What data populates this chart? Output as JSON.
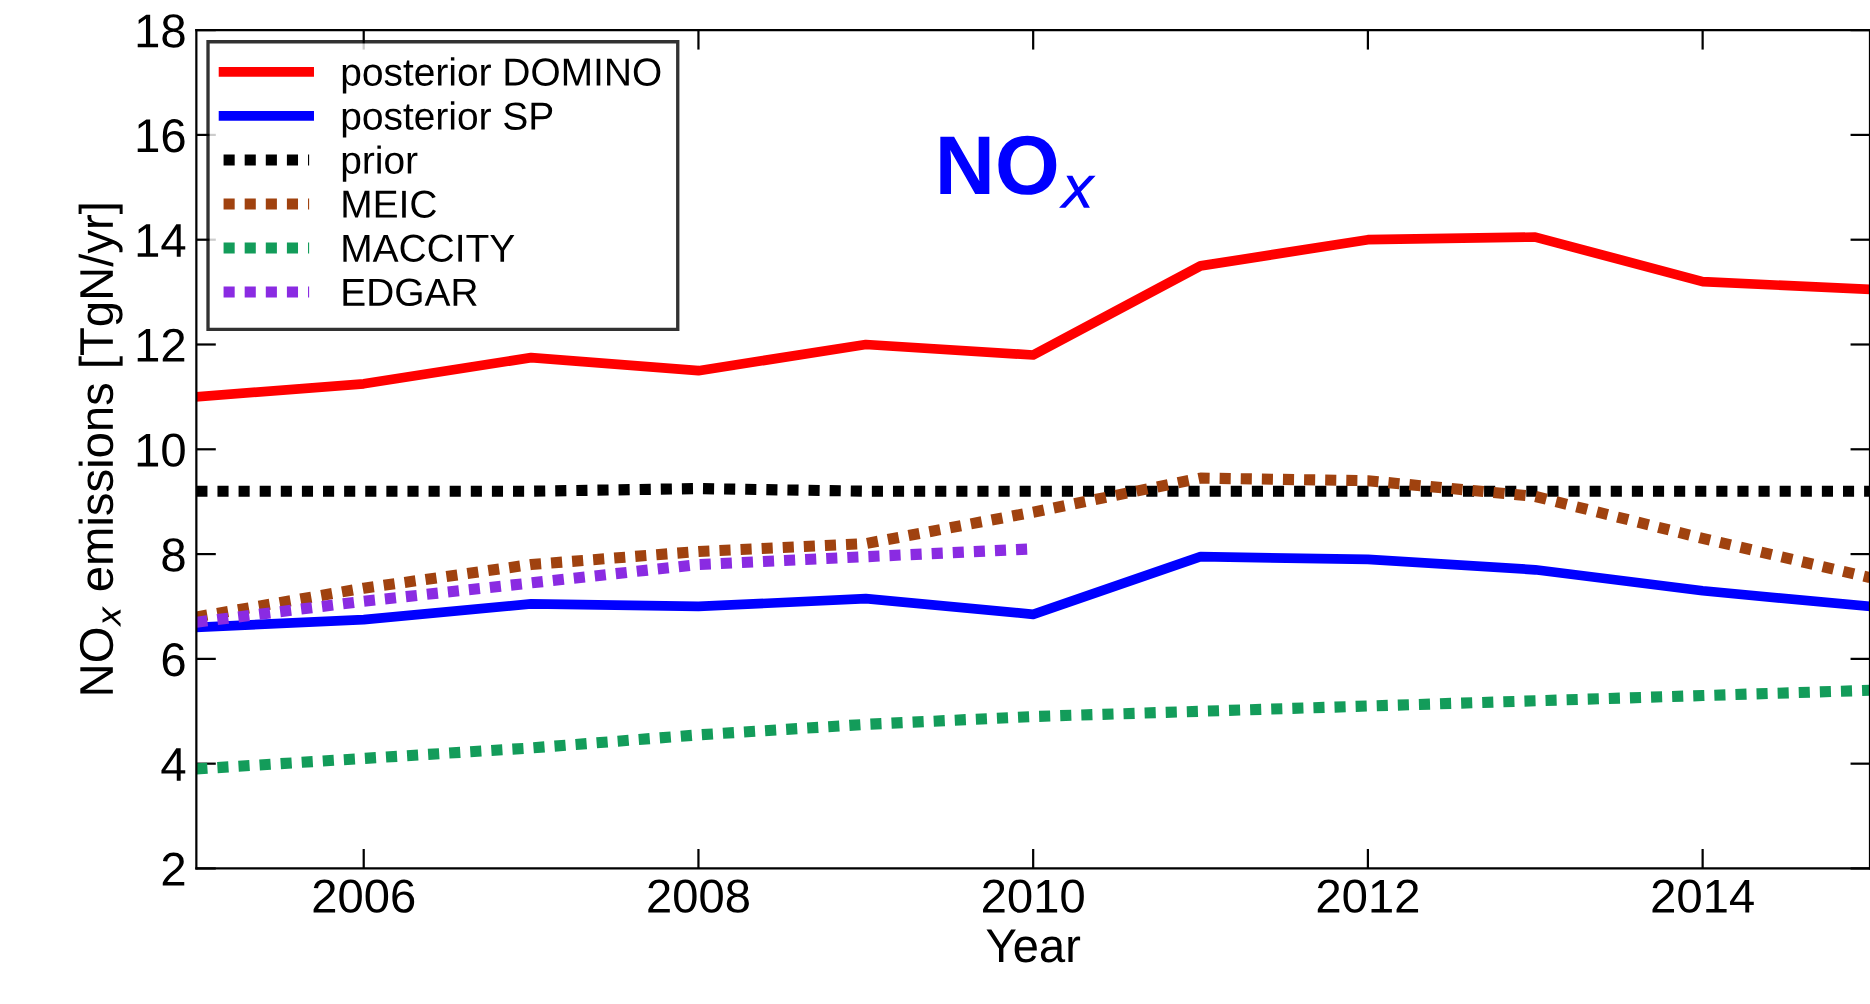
{
  "chart_data": {
    "type": "line",
    "xlabel": "Year",
    "ylabel": "NO$_{x}$ emissions [TgN/yr]",
    "annotations": [
      "NO$_{x}$"
    ],
    "x": [
      2005,
      2006,
      2007,
      2008,
      2009,
      2010,
      2011,
      2012,
      2013,
      2014,
      2015
    ],
    "series": [
      {
        "name": "posterior DOMINO",
        "color": "#ff0000",
        "line_style": "solid",
        "values": [
          11.0,
          11.25,
          11.75,
          11.5,
          12.0,
          11.8,
          13.5,
          14.0,
          14.05,
          13.2,
          13.05
        ]
      },
      {
        "name": "posterior SP",
        "color": "#0000ff",
        "line_style": "solid",
        "values": [
          6.6,
          6.75,
          7.05,
          7.0,
          7.15,
          6.85,
          7.95,
          7.9,
          7.7,
          7.3,
          7.0
        ]
      },
      {
        "name": "prior",
        "color": "#000000",
        "line_style": "dotted",
        "values": [
          9.2,
          9.2,
          9.2,
          9.25,
          9.2,
          9.2,
          9.2,
          9.2,
          9.2,
          9.2,
          9.2
        ]
      },
      {
        "name": "MEIC",
        "color": "#a0420f",
        "line_style": "dotted",
        "values": [
          6.8,
          7.35,
          7.8,
          8.05,
          8.2,
          8.8,
          9.45,
          9.4,
          9.1,
          8.3,
          7.55
        ]
      },
      {
        "name": "MACCITY",
        "color": "#139c5a",
        "line_style": "dotted",
        "values": [
          3.9,
          4.1,
          4.3,
          4.55,
          4.75,
          4.9,
          5.0,
          5.1,
          5.2,
          5.3,
          5.4
        ]
      },
      {
        "name": "EDGAR",
        "color": "#8a2be2",
        "line_style": "dotted",
        "values": [
          6.7,
          7.1,
          7.45,
          7.8,
          7.95,
          8.1,
          null,
          null,
          null,
          null,
          null
        ]
      }
    ],
    "xlim": [
      2005,
      2015
    ],
    "xticks": [
      2006,
      2008,
      2010,
      2012,
      2014
    ],
    "ylim": [
      2,
      18
    ],
    "yticks": [
      2,
      4,
      6,
      8,
      10,
      12,
      14,
      16,
      18
    ],
    "grid": false,
    "legend": "top left",
    "marker": "none"
  }
}
